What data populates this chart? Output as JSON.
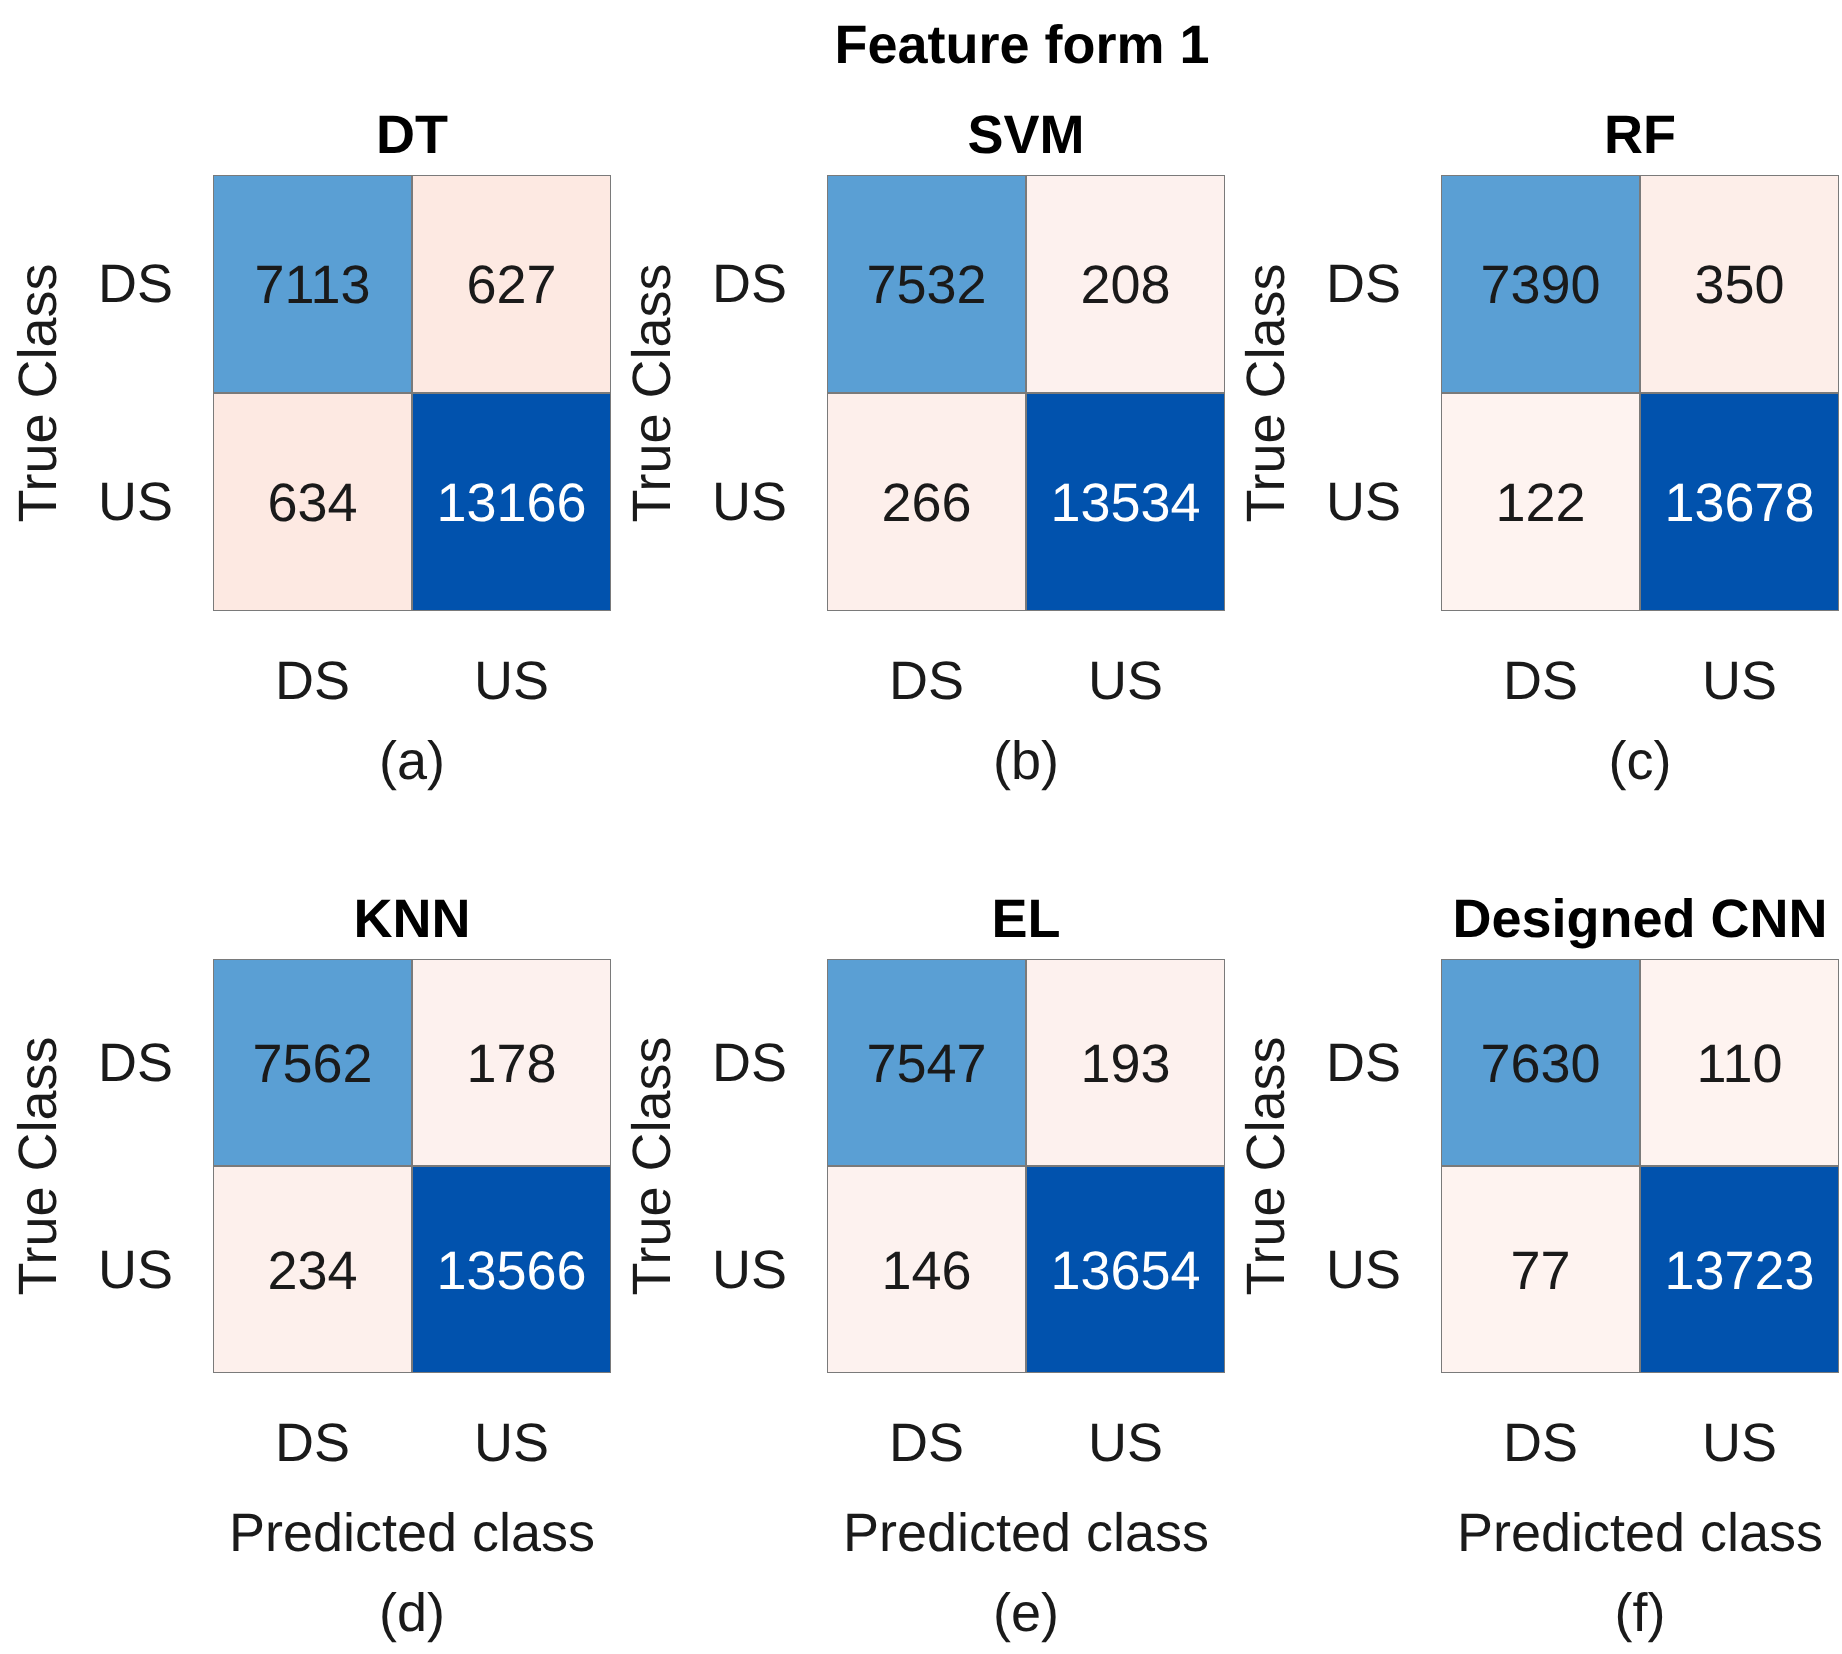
{
  "chart_data": [
    {
      "type": "other",
      "title": "Feature form 1"
    },
    {
      "type": "heatmap",
      "title": "DT",
      "categories": [
        "DS",
        "US"
      ],
      "y_categories": [
        "DS",
        "US"
      ],
      "cells": [
        [
          7113,
          627
        ],
        [
          634,
          13166
        ]
      ],
      "colors": [
        [
          "#5a9fd4",
          "#fde9e2"
        ],
        [
          "#fde9e2",
          "#0152ad"
        ]
      ],
      "data_labels": true,
      "ylabel": "True Class",
      "annotations": [
        "(a)"
      ]
    },
    {
      "type": "heatmap",
      "title": "SVM",
      "categories": [
        "DS",
        "US"
      ],
      "y_categories": [
        "DS",
        "US"
      ],
      "cells": [
        [
          7532,
          208
        ],
        [
          266,
          13534
        ]
      ],
      "colors": [
        [
          "#5a9fd4",
          "#fdf1ee"
        ],
        [
          "#fdefeb",
          "#0152ad"
        ]
      ],
      "data_labels": true,
      "ylabel": "True Class",
      "annotations": [
        "(b)"
      ]
    },
    {
      "type": "heatmap",
      "title": "RF",
      "categories": [
        "DS",
        "US"
      ],
      "y_categories": [
        "DS",
        "US"
      ],
      "cells": [
        [
          7390,
          350
        ],
        [
          122,
          13678
        ]
      ],
      "colors": [
        [
          "#5a9fd4",
          "#fdeee9"
        ],
        [
          "#fef3f0",
          "#0152ad"
        ]
      ],
      "data_labels": true,
      "ylabel": "True Class",
      "annotations": [
        "(c)"
      ]
    },
    {
      "type": "heatmap",
      "title": "KNN",
      "categories": [
        "DS",
        "US"
      ],
      "y_categories": [
        "DS",
        "US"
      ],
      "cells": [
        [
          7562,
          178
        ],
        [
          234,
          13566
        ]
      ],
      "colors": [
        [
          "#5a9fd4",
          "#fdf1ee"
        ],
        [
          "#fdf0ec",
          "#0152ad"
        ]
      ],
      "data_labels": true,
      "xlabel": "Predicted class",
      "ylabel": "True Class",
      "annotations": [
        "(d)"
      ]
    },
    {
      "type": "heatmap",
      "title": "EL",
      "categories": [
        "DS",
        "US"
      ],
      "y_categories": [
        "DS",
        "US"
      ],
      "cells": [
        [
          7547,
          193
        ],
        [
          146,
          13654
        ]
      ],
      "colors": [
        [
          "#5a9fd4",
          "#fdf1ee"
        ],
        [
          "#fdf2ef",
          "#0152ad"
        ]
      ],
      "data_labels": true,
      "xlabel": "Predicted class",
      "ylabel": "True Class",
      "annotations": [
        "(e)"
      ]
    },
    {
      "type": "heatmap",
      "title": "Designed CNN",
      "categories": [
        "DS",
        "US"
      ],
      "y_categories": [
        "DS",
        "US"
      ],
      "cells": [
        [
          7630,
          110
        ],
        [
          77,
          13723
        ]
      ],
      "colors": [
        [
          "#5a9fd4",
          "#fef3f0"
        ],
        [
          "#fef3f0",
          "#0152ad"
        ]
      ],
      "data_labels": true,
      "xlabel": "Predicted class",
      "ylabel": "True Class",
      "annotations": [
        "(f)"
      ]
    }
  ]
}
